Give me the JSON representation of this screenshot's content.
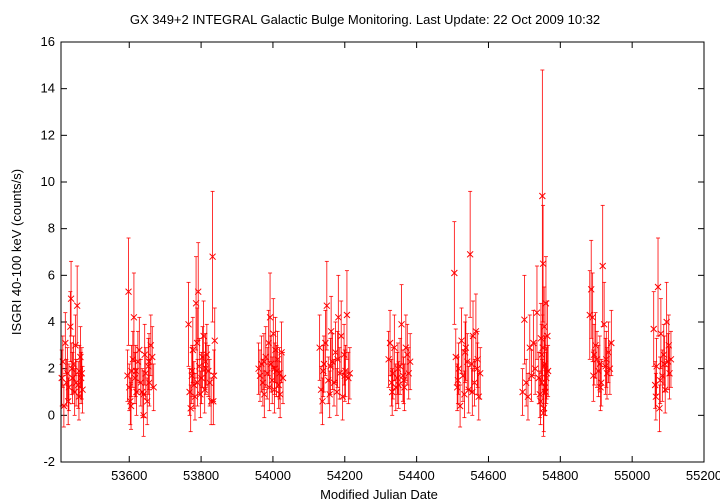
{
  "chart_data": {
    "type": "scatter",
    "title": "GX 349+2   INTEGRAL Galactic Bulge Monitoring.  Last Update: 22 Oct 2009 10:32",
    "xlabel": "Modified Julian Date",
    "ylabel": "ISGRI 40-100 keV (counts/s)",
    "xlim": [
      53410,
      55200
    ],
    "ylim": [
      -2,
      16
    ],
    "xticks": [
      53600,
      53800,
      54000,
      54200,
      54400,
      54600,
      54800,
      55000,
      55200
    ],
    "yticks": [
      -2,
      0,
      2,
      4,
      6,
      8,
      10,
      12,
      14,
      16
    ],
    "grid": false,
    "legend": "none",
    "marker": "cross",
    "color": "#ff0000",
    "series": [
      {
        "x": [
          53412,
          53418,
          53422,
          53425,
          53428,
          53432,
          53436,
          53438,
          53442,
          53445,
          53448,
          53452,
          53455,
          53458,
          53461,
          53464,
          53468,
          53470,
          53415,
          53440,
          53450,
          53430,
          53460,
          53466
        ],
        "y": [
          1.6,
          0.4,
          3.1,
          1.4,
          1.8,
          1.2,
          3.8,
          5.0,
          1.6,
          2.2,
          1.0,
          1.4,
          4.7,
          1.3,
          1.9,
          2.5,
          1.8,
          1.1,
          2.3,
          2.0,
          3.0,
          0.6,
          0.8,
          1.6
        ],
        "err": [
          1.2,
          0.9,
          1.3,
          1.0,
          1.1,
          1.0,
          1.5,
          1.6,
          1.1,
          1.2,
          1.0,
          1.0,
          1.7,
          1.0,
          1.1,
          1.3,
          1.1,
          1.0,
          1.1,
          1.1,
          1.3,
          1.0,
          1.0,
          1.1
        ]
      },
      {
        "x": [
          53595,
          53598,
          53600,
          53603,
          53606,
          53610,
          53613,
          53616,
          53620,
          53624,
          53628,
          53632,
          53636,
          53640,
          53643,
          53646,
          53650,
          53653,
          53656,
          53660,
          53664,
          53668,
          53605,
          53618,
          53640,
          53655
        ],
        "y": [
          1.7,
          5.3,
          1.2,
          0.6,
          1.9,
          2.4,
          4.2,
          1.6,
          1.0,
          2.3,
          2.8,
          1.4,
          1.0,
          0.0,
          2.6,
          1.8,
          0.6,
          2.1,
          1.4,
          3.0,
          2.5,
          1.2,
          0.4,
          1.9,
          0.9,
          2.3
        ],
        "err": [
          1.1,
          2.3,
          1.0,
          1.0,
          1.1,
          1.2,
          1.9,
          1.1,
          1.0,
          1.3,
          1.4,
          1.0,
          1.0,
          0.9,
          1.3,
          1.1,
          1.0,
          1.2,
          1.0,
          1.3,
          1.3,
          1.0,
          1.0,
          1.1,
          1.0,
          1.2
        ]
      },
      {
        "x": [
          53765,
          53768,
          53771,
          53774,
          53777,
          53780,
          53783,
          53786,
          53789,
          53792,
          53795,
          53798,
          53801,
          53804,
          53807,
          53810,
          53813,
          53816,
          53820,
          53824,
          53828,
          53832,
          53836,
          53838,
          53775,
          53790,
          53812,
          53834
        ],
        "y": [
          3.9,
          1.0,
          0.3,
          1.7,
          2.8,
          1.3,
          0.8,
          4.8,
          3.1,
          5.3,
          2.1,
          0.9,
          1.6,
          2.5,
          3.4,
          1.1,
          2.0,
          2.6,
          1.9,
          1.4,
          0.6,
          6.8,
          1.7,
          3.2,
          1.9,
          1.4,
          2.3,
          0.6
        ],
        "err": [
          1.8,
          1.0,
          1.0,
          1.2,
          1.4,
          1.0,
          1.0,
          2.0,
          1.5,
          2.1,
          1.2,
          1.0,
          1.1,
          1.3,
          1.5,
          1.0,
          1.1,
          1.3,
          1.1,
          1.0,
          1.0,
          2.8,
          1.1,
          1.4,
          1.1,
          1.0,
          1.2,
          1.0
        ]
      },
      {
        "x": [
          53960,
          53964,
          53968,
          53972,
          53976,
          53980,
          53984,
          53988,
          53992,
          53995,
          53998,
          54001,
          54004,
          54007,
          54010,
          54013,
          54016,
          54020,
          54024,
          54028,
          53975,
          53990,
          54005,
          54018
        ],
        "y": [
          2.0,
          1.7,
          2.2,
          1.4,
          0.9,
          2.5,
          1.8,
          3.1,
          4.2,
          2.2,
          1.5,
          3.5,
          1.1,
          2.8,
          1.9,
          2.4,
          1.3,
          0.9,
          2.7,
          1.6,
          2.3,
          1.2,
          2.0,
          1.8
        ],
        "err": [
          1.1,
          1.1,
          1.2,
          1.0,
          1.0,
          1.3,
          1.1,
          1.4,
          1.9,
          1.2,
          1.0,
          1.5,
          1.0,
          1.4,
          1.1,
          1.2,
          1.0,
          1.0,
          1.3,
          1.1,
          1.2,
          1.0,
          1.1,
          1.1
        ]
      },
      {
        "x": [
          54130,
          54134,
          54138,
          54142,
          54146,
          54150,
          54154,
          54158,
          54162,
          54166,
          54170,
          54174,
          54178,
          54182,
          54186,
          54190,
          54194,
          54198,
          54202,
          54206,
          54210,
          54214,
          54140,
          54160,
          54180,
          54200
        ],
        "y": [
          2.9,
          1.1,
          0.6,
          2.2,
          3.1,
          4.7,
          1.5,
          0.9,
          3.6,
          2.3,
          1.4,
          2.7,
          1.0,
          4.2,
          1.8,
          3.4,
          0.8,
          2.6,
          1.9,
          4.3,
          1.6,
          1.8,
          1.9,
          2.1,
          2.4,
          1.7
        ],
        "err": [
          1.4,
          1.0,
          1.0,
          1.2,
          1.4,
          1.9,
          1.0,
          1.0,
          1.5,
          1.2,
          1.0,
          1.3,
          1.0,
          1.8,
          1.1,
          1.5,
          1.0,
          1.3,
          1.1,
          1.9,
          1.1,
          1.1,
          1.1,
          1.2,
          1.2,
          1.1
        ]
      },
      {
        "x": [
          54322,
          54326,
          54330,
          54334,
          54338,
          54342,
          54346,
          54350,
          54354,
          54358,
          54362,
          54366,
          54370,
          54374,
          54378,
          54382,
          54332,
          54348,
          54364
        ],
        "y": [
          2.4,
          3.1,
          1.4,
          1.8,
          2.9,
          1.2,
          1.6,
          1.3,
          2.1,
          3.9,
          1.7,
          1.2,
          2.9,
          2.6,
          1.8,
          2.3,
          1.0,
          2.0,
          1.5
        ],
        "err": [
          1.2,
          1.4,
          1.0,
          1.1,
          1.4,
          1.0,
          1.1,
          1.0,
          1.2,
          1.7,
          1.1,
          1.0,
          1.4,
          1.3,
          1.1,
          1.2,
          1.0,
          1.1,
          1.0
        ]
      },
      {
        "x": [
          54505,
          54509,
          54513,
          54517,
          54521,
          54525,
          54529,
          54533,
          54537,
          54541,
          54545,
          54549,
          54553,
          54557,
          54561,
          54565,
          54569,
          54573,
          54577,
          54515,
          54535,
          54555,
          54570
        ],
        "y": [
          6.1,
          2.5,
          1.2,
          2.0,
          0.4,
          3.2,
          1.7,
          0.9,
          2.9,
          2.3,
          1.1,
          6.9,
          2.2,
          3.4,
          1.4,
          3.6,
          2.0,
          0.8,
          1.8,
          1.5,
          2.7,
          1.0,
          2.4
        ],
        "err": [
          2.2,
          1.2,
          1.0,
          1.1,
          0.9,
          1.4,
          1.1,
          1.0,
          1.4,
          1.2,
          1.0,
          2.7,
          1.2,
          1.5,
          1.0,
          1.6,
          1.1,
          1.0,
          1.1,
          1.0,
          1.3,
          1.0,
          1.2
        ]
      },
      {
        "x": [
          54695,
          54700,
          54705,
          54710,
          54715,
          54720,
          54725,
          54730,
          54735,
          54740,
          54743,
          54746,
          54748,
          54750,
          54752,
          54754,
          54756,
          54758,
          54760,
          54762,
          54764,
          54766,
          54745,
          54749,
          54751,
          54753,
          54755,
          54757,
          54759,
          54761
        ],
        "y": [
          1.0,
          4.1,
          1.4,
          0.8,
          2.9,
          1.7,
          3.1,
          2.0,
          4.4,
          1.6,
          0.9,
          3.3,
          2.6,
          9.4,
          6.5,
          0.3,
          2.1,
          1.2,
          4.8,
          1.8,
          3.4,
          1.9,
          0.6,
          1.4,
          2.9,
          0.1,
          3.8,
          2.2,
          1.0,
          1.6
        ],
        "err": [
          1.0,
          1.9,
          1.0,
          1.0,
          1.4,
          1.1,
          1.4,
          1.1,
          2.0,
          1.1,
          1.0,
          1.5,
          1.3,
          5.4,
          2.5,
          1.0,
          1.2,
          1.0,
          2.0,
          1.1,
          1.5,
          1.1,
          1.0,
          1.0,
          1.4,
          1.0,
          1.7,
          1.2,
          1.0,
          1.1
        ]
      },
      {
        "x": [
          54882,
          54886,
          54890,
          54894,
          54898,
          54902,
          54906,
          54910,
          54914,
          54918,
          54922,
          54926,
          54930,
          54934,
          54938,
          54942,
          54892,
          54912,
          54928
        ],
        "y": [
          4.3,
          5.4,
          4.2,
          2.6,
          3.0,
          2.4,
          1.9,
          2.2,
          1.4,
          6.4,
          3.9,
          2.1,
          1.8,
          2.7,
          2.0,
          3.1,
          1.7,
          1.2,
          2.4
        ],
        "err": [
          1.9,
          2.1,
          1.9,
          1.3,
          1.4,
          1.2,
          1.1,
          1.2,
          1.0,
          2.6,
          1.8,
          1.2,
          1.1,
          1.3,
          1.1,
          1.4,
          1.1,
          1.0,
          1.2
        ]
      },
      {
        "x": [
          55060,
          55064,
          55068,
          55072,
          55076,
          55080,
          55084,
          55088,
          55092,
          55096,
          55100,
          55104,
          55108,
          55066,
          55078,
          55090,
          55102
        ],
        "y": [
          3.7,
          1.3,
          2.1,
          5.5,
          0.3,
          3.5,
          1.7,
          2.6,
          1.1,
          4.0,
          2.3,
          1.8,
          2.4,
          0.8,
          1.5,
          2.2,
          3.0
        ],
        "err": [
          1.6,
          1.0,
          1.2,
          2.1,
          1.0,
          1.5,
          1.1,
          1.3,
          1.0,
          1.7,
          1.2,
          1.1,
          1.2,
          1.0,
          1.0,
          1.2,
          1.3
        ]
      }
    ]
  }
}
